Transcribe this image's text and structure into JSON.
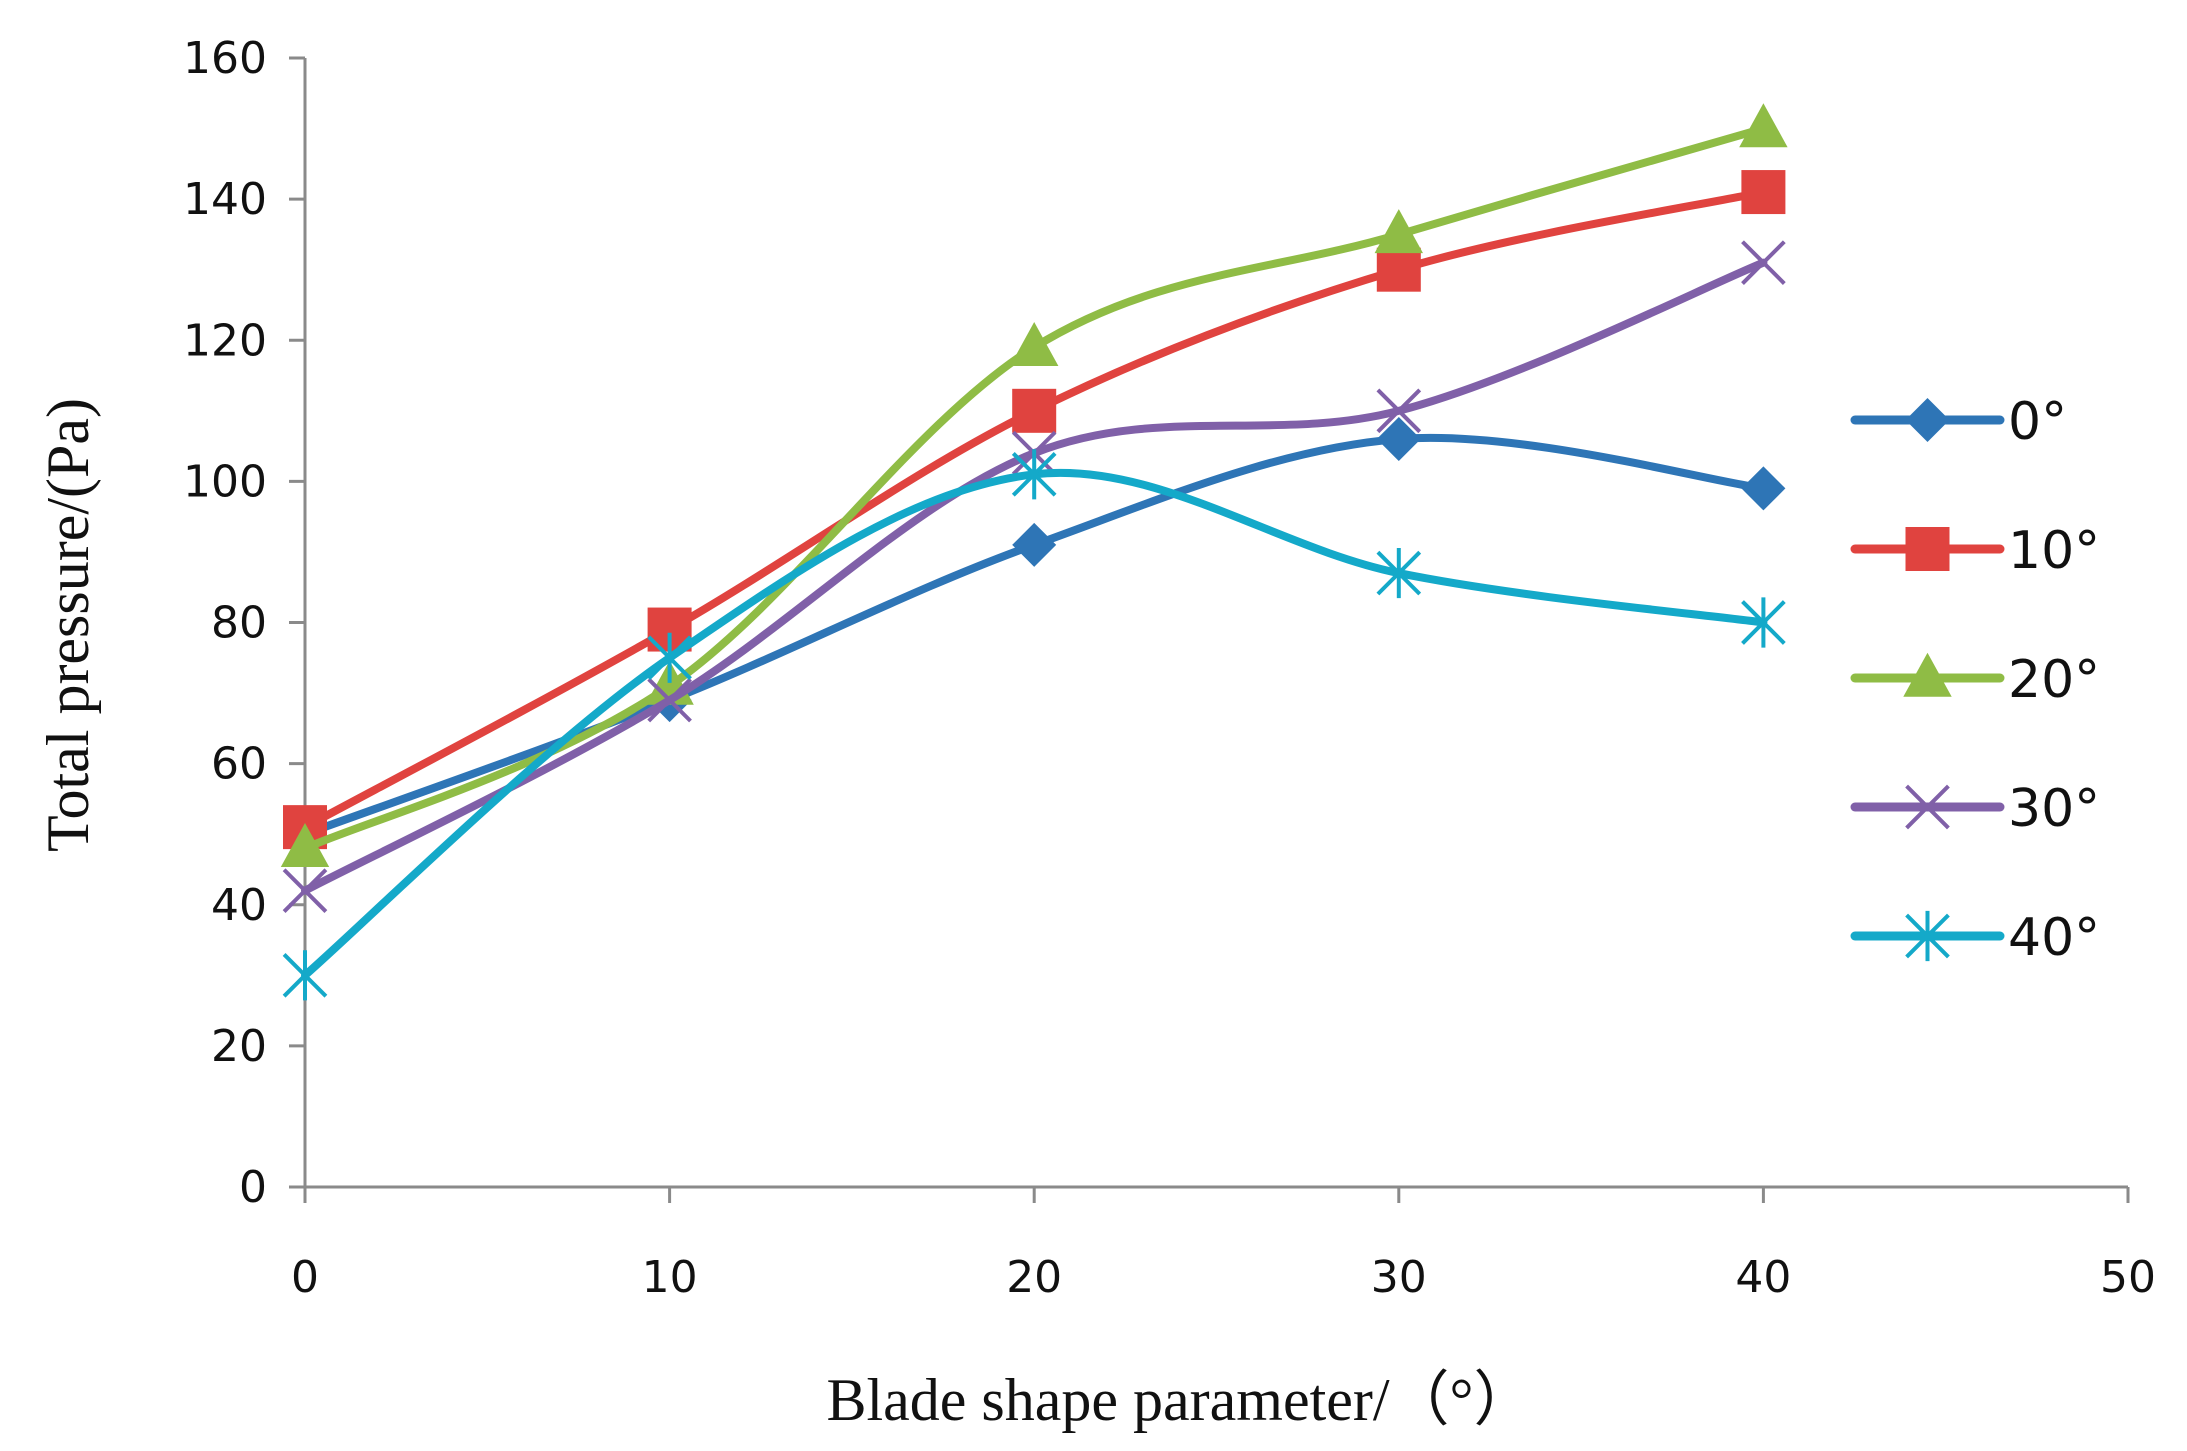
{
  "chart_data": {
    "type": "line",
    "title": "",
    "xlabel": "Blade  shape parameter/（°）",
    "ylabel": "Total pressure/(Pa)",
    "x": [
      0,
      10,
      20,
      30,
      40
    ],
    "xlim": [
      0,
      50
    ],
    "ylim": [
      0,
      160
    ],
    "xticks": [
      "0",
      "10",
      "20",
      "30",
      "40",
      "50"
    ],
    "yticks": [
      "0",
      "20",
      "40",
      "60",
      "80",
      "100",
      "120",
      "140",
      "160"
    ],
    "grid": false,
    "smooth": true,
    "legend_position": "right",
    "series": [
      {
        "name": "0°",
        "values": [
          50,
          69,
          91,
          106,
          99
        ],
        "color": "#2e75b6",
        "marker": "diamond"
      },
      {
        "name": "10°",
        "values": [
          51,
          79,
          110,
          130,
          141
        ],
        "color": "#e0433f",
        "marker": "square"
      },
      {
        "name": "20°",
        "values": [
          48,
          71,
          119,
          135,
          150
        ],
        "color": "#8fbc45",
        "marker": "triangle"
      },
      {
        "name": "30°",
        "values": [
          42,
          69,
          104,
          110,
          131
        ],
        "color": "#8060a8",
        "marker": "x"
      },
      {
        "name": "40°",
        "values": [
          30,
          75,
          101,
          87,
          80
        ],
        "color": "#14a9c9",
        "marker": "asterisk"
      }
    ]
  }
}
